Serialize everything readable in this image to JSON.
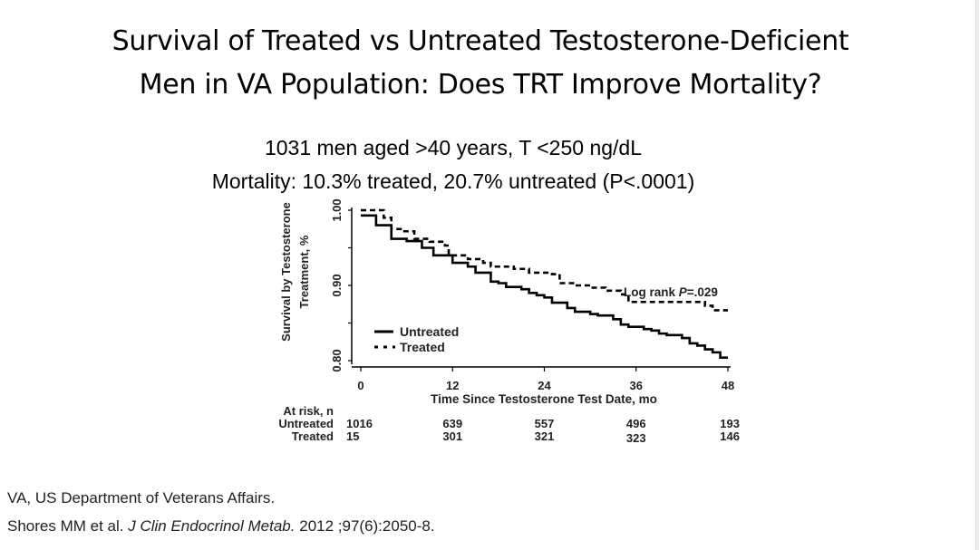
{
  "slide": {
    "title_line1": "Survival of Treated vs Untreated Testosterone-Deficient",
    "title_line2": "Men in VA Population: Does TRT Improve Mortality?",
    "subtitle_line1": "1031 men aged >40 years, T <250 ng/dL",
    "subtitle_line2": "Mortality: 10.3% treated, 20.7% untreated (P<.0001)",
    "footnote": "VA, US Department of Veterans Affairs.",
    "citation_authors": "Shores MM et al.",
    "citation_journal": "J Clin Endocrinol Metab.",
    "citation_rest": "2012 ;97(6):2050-8."
  },
  "chart_data": {
    "type": "line",
    "subtype": "kaplan-meier step",
    "xlabel": "Time Since Testosterone Test Date, mo",
    "ylabel_line1": "Survival by Testosterone",
    "ylabel_line2": "Treatment, %",
    "xlim": [
      0,
      48
    ],
    "ylim": [
      0.8,
      1.0
    ],
    "xticks": [
      "0",
      "12",
      "24",
      "36",
      "48"
    ],
    "yticks": [
      "0.80",
      "0.90",
      "1.00"
    ],
    "grid": false,
    "legend_placement": "bottom-left",
    "annotation": "Log rank P=.029",
    "series": [
      {
        "name": "Untreated",
        "style": "solid",
        "x": [
          0,
          2,
          4,
          6,
          8,
          9.5,
          12,
          14,
          15,
          17,
          18,
          19,
          21,
          22,
          23,
          24,
          25,
          27,
          28,
          30,
          31,
          33,
          34,
          35,
          37,
          38,
          39,
          40,
          42,
          43,
          44,
          45,
          46,
          47,
          48
        ],
        "y": [
          0.993,
          0.98,
          0.962,
          0.959,
          0.95,
          0.94,
          0.93,
          0.925,
          0.917,
          0.905,
          0.903,
          0.898,
          0.895,
          0.89,
          0.887,
          0.884,
          0.877,
          0.87,
          0.865,
          0.862,
          0.86,
          0.855,
          0.848,
          0.845,
          0.842,
          0.84,
          0.836,
          0.834,
          0.83,
          0.823,
          0.82,
          0.815,
          0.811,
          0.804,
          0.804
        ]
      },
      {
        "name": "Treated",
        "style": "dashed",
        "x": [
          0,
          2,
          3,
          4,
          5.5,
          7,
          9,
          11,
          11.5,
          14,
          16,
          17,
          20,
          22,
          25,
          26,
          28,
          30,
          32,
          34,
          35,
          45,
          46,
          48
        ],
        "y": [
          1.0,
          1.0,
          0.99,
          0.975,
          0.972,
          0.962,
          0.958,
          0.953,
          0.94,
          0.935,
          0.93,
          0.925,
          0.922,
          0.917,
          0.915,
          0.903,
          0.9,
          0.897,
          0.893,
          0.888,
          0.878,
          0.873,
          0.867,
          0.867
        ]
      }
    ],
    "at_risk": {
      "header": "At risk, n",
      "rows": [
        {
          "label": "Untreated",
          "values": [
            "1016",
            "639",
            "557",
            "496",
            "193"
          ]
        },
        {
          "label": "Treated",
          "values": [
            "15",
            "301",
            "321",
            "323",
            "146"
          ]
        }
      ]
    }
  }
}
